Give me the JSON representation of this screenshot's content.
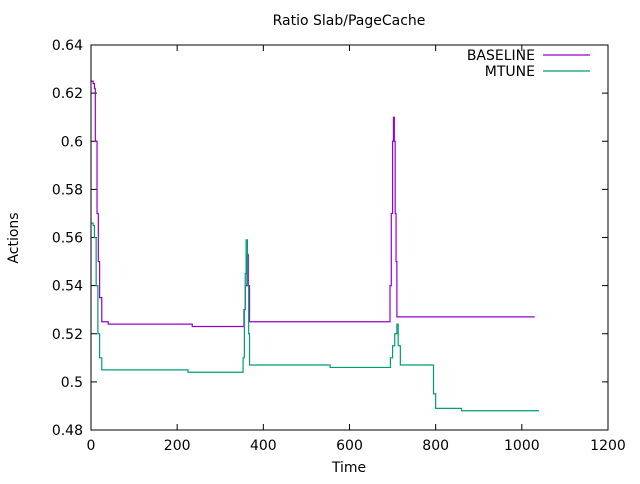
{
  "chart_data": {
    "type": "line",
    "title": "Ratio Slab/PageCache",
    "xlabel": "Time",
    "ylabel": "Actions",
    "xlim": [
      0,
      1200
    ],
    "ylim": [
      0.48,
      0.64
    ],
    "xticks": [
      "0",
      "200",
      "400",
      "600",
      "800",
      "1000",
      "1200"
    ],
    "yticks": [
      "0.48",
      "0.5",
      "0.52",
      "0.54",
      "0.56",
      "0.58",
      "0.6",
      "0.62",
      "0.64"
    ],
    "grid": false,
    "legend_position": "top-right",
    "series": [
      {
        "name": "BASELINE",
        "color": "#9400d3",
        "x": [
          0,
          5,
          8,
          10,
          14,
          17,
          20,
          25,
          40,
          230,
          235,
          350,
          355,
          358,
          362,
          365,
          368,
          690,
          694,
          697,
          700,
          702,
          704,
          706,
          708,
          710,
          1030
        ],
        "y": [
          0.625,
          0.624,
          0.622,
          0.6,
          0.57,
          0.55,
          0.535,
          0.525,
          0.524,
          0.524,
          0.523,
          0.523,
          0.53,
          0.54,
          0.553,
          0.54,
          0.525,
          0.525,
          0.54,
          0.57,
          0.6,
          0.61,
          0.6,
          0.57,
          0.55,
          0.527,
          0.527
        ]
      },
      {
        "name": "MTUNE",
        "color": "#009e73",
        "x": [
          0,
          5,
          8,
          12,
          16,
          20,
          25,
          220,
          225,
          350,
          353,
          356,
          358,
          360,
          363,
          366,
          368,
          550,
          555,
          690,
          695,
          700,
          705,
          710,
          713,
          718,
          790,
          795,
          800,
          855,
          860,
          1040
        ],
        "y": [
          0.566,
          0.565,
          0.56,
          0.54,
          0.52,
          0.51,
          0.505,
          0.505,
          0.504,
          0.504,
          0.51,
          0.53,
          0.545,
          0.559,
          0.54,
          0.52,
          0.507,
          0.507,
          0.506,
          0.506,
          0.51,
          0.515,
          0.52,
          0.524,
          0.515,
          0.507,
          0.507,
          0.495,
          0.489,
          0.489,
          0.488,
          0.488
        ]
      }
    ]
  }
}
